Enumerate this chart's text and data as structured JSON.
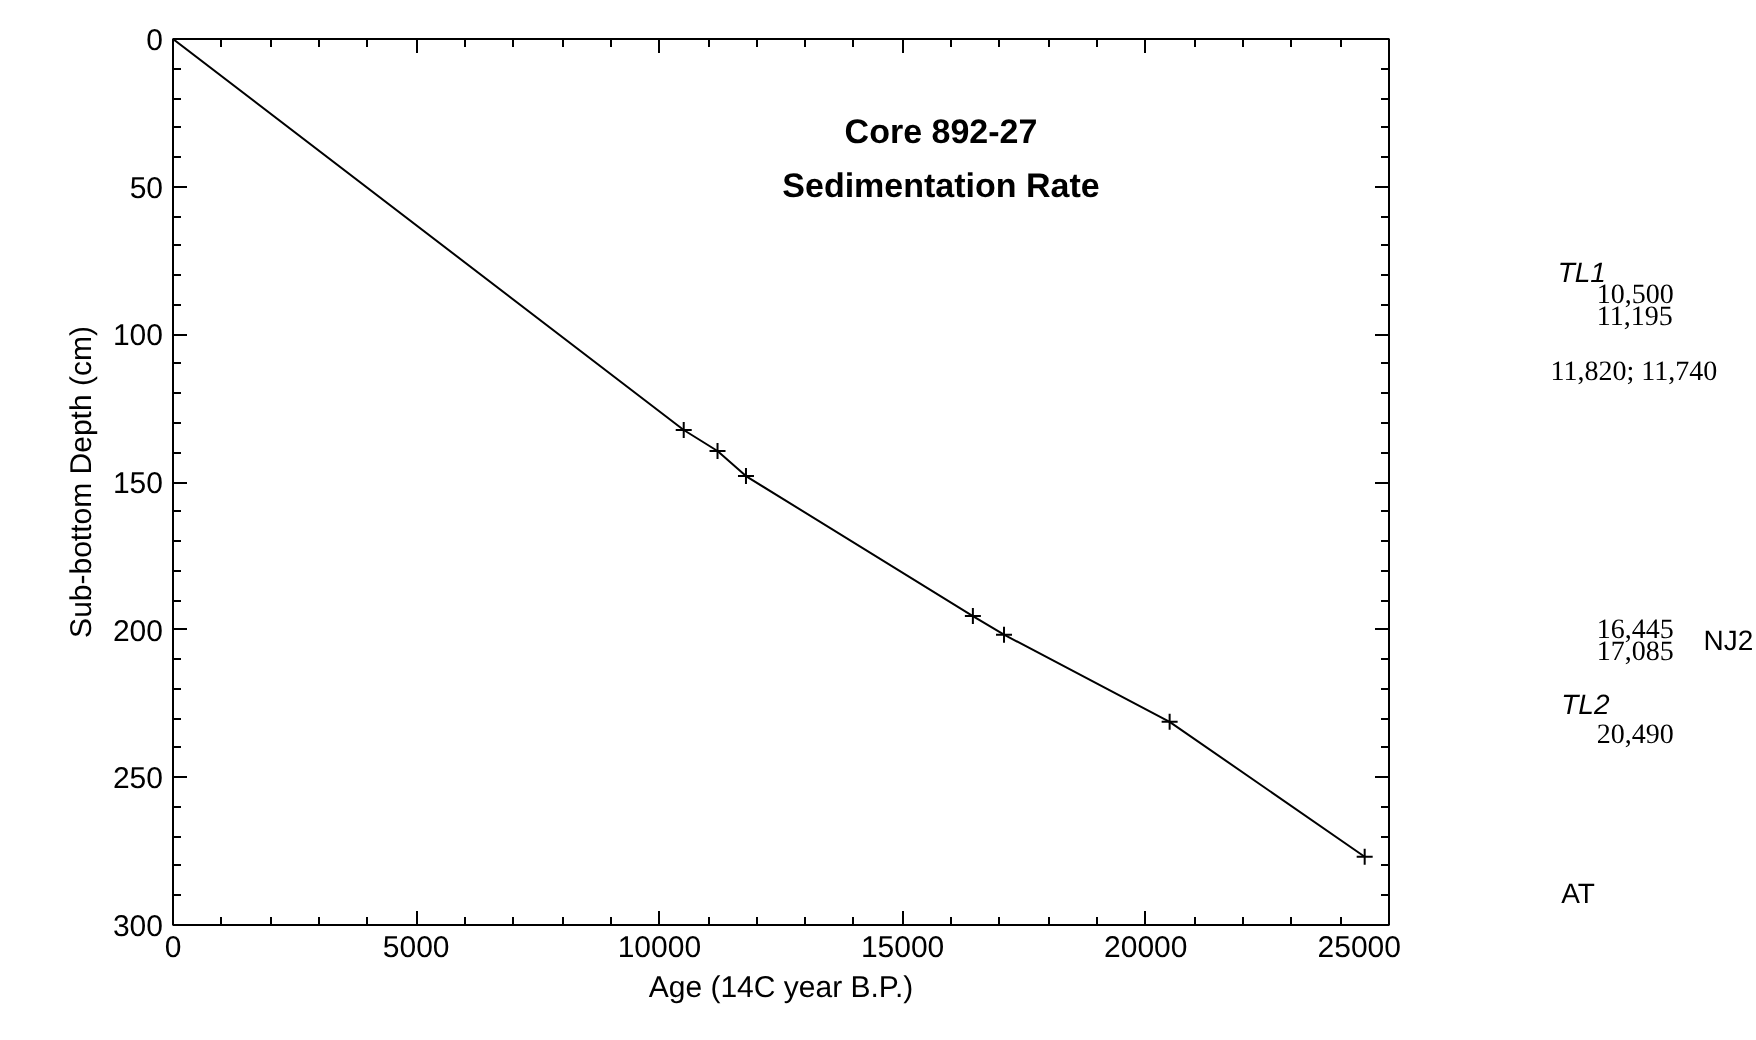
{
  "chart_data": [
    {
      "type": "line",
      "title": "Core 892-27",
      "subtitle": "Sedimentation Rate",
      "xlabel": "Age (14C year B.P.)",
      "ylabel": "Sub-bottom Depth (cm)",
      "x": [
        0,
        10500,
        11195,
        11780,
        16445,
        17085,
        20490,
        24500
      ],
      "series": [
        {
          "color": "#000000",
          "values": [
            0,
            132.4,
            139.5,
            148,
            195.4,
            201.7,
            231.2,
            276.9
          ]
        }
      ],
      "xlim": [
        0,
        25000
      ],
      "xticks": [
        0,
        5000,
        10000,
        15000,
        20000,
        25000
      ],
      "ylim": [
        300,
        0
      ],
      "yticks": [
        0,
        50,
        100,
        150,
        200,
        250,
        300
      ],
      "marker": "cross",
      "line_style": "solid"
    },
    {
      "type": "other",
      "annotations": [
        "TL1",
        "10,500",
        "11,195",
        "11,820; 11,740",
        "16,445",
        "17,085",
        "NJ2",
        "TL2",
        "20,490",
        "AT"
      ]
    }
  ]
}
